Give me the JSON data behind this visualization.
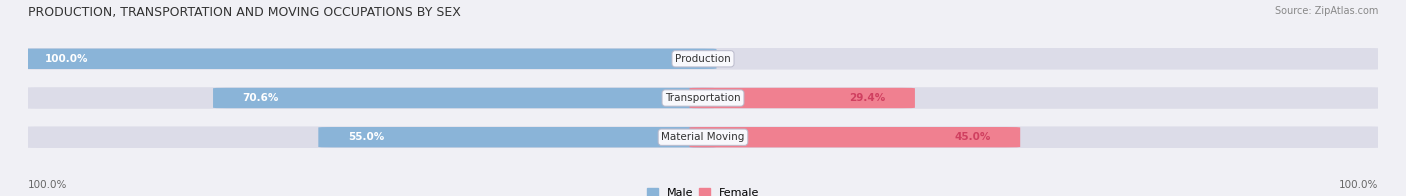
{
  "title": "PRODUCTION, TRANSPORTATION AND MOVING OCCUPATIONS BY SEX",
  "source": "Source: ZipAtlas.com",
  "categories": [
    "Production",
    "Transportation",
    "Material Moving"
  ],
  "male_values": [
    100.0,
    70.6,
    55.0
  ],
  "female_values": [
    0.0,
    29.4,
    45.0
  ],
  "male_color": "#8ab4d8",
  "female_color": "#f08090",
  "male_label_color": "#ffffff",
  "female_label_color": "#d04060",
  "bar_bg_color": "#dcdce8",
  "label_box_color": "#f8f8fc",
  "label_box_edge": "#bbbbcc",
  "axis_label_left": "100.0%",
  "axis_label_right": "100.0%",
  "male_legend_color": "#8ab4d8",
  "female_legend_color": "#f08090",
  "background_color": "#f0f0f5",
  "title_fontsize": 9,
  "source_fontsize": 7,
  "bar_label_fontsize": 7.5,
  "cat_label_fontsize": 7.5,
  "legend_fontsize": 8,
  "axis_tick_fontsize": 7.5
}
